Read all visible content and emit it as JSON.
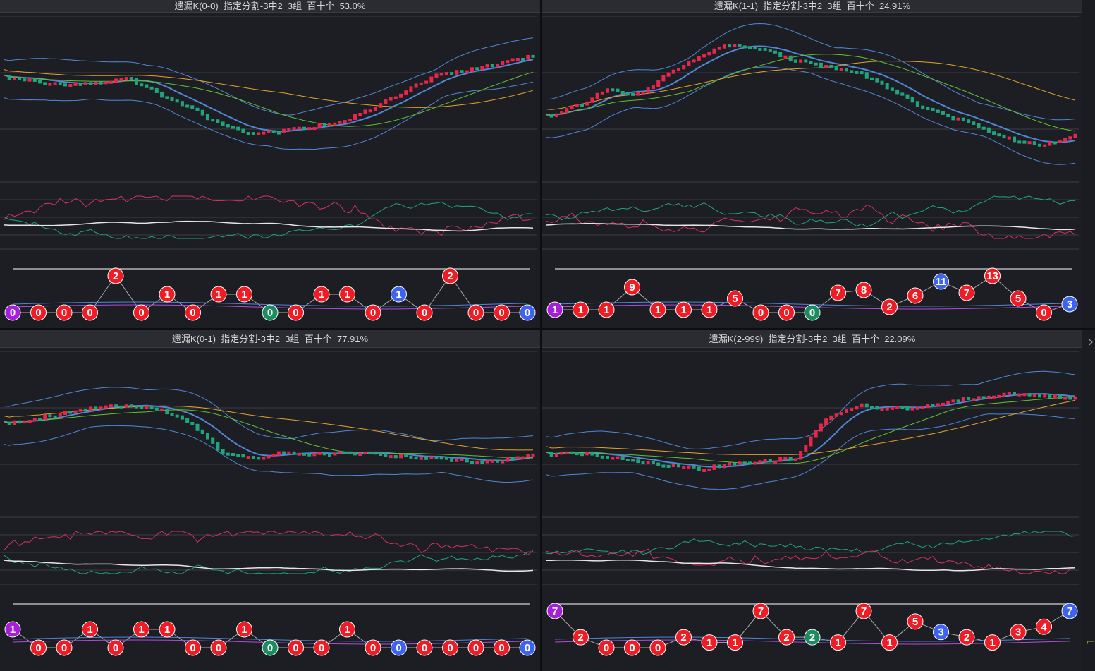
{
  "panels": [
    {
      "title": "遗漏K(0-0)  指定分割-3中2  3组  百十个  53.0%",
      "omissions": [
        {
          "v": 0,
          "c": "purple"
        },
        {
          "v": 0,
          "c": "red"
        },
        {
          "v": 0,
          "c": "red"
        },
        {
          "v": 0,
          "c": "red"
        },
        {
          "v": 2,
          "c": "red"
        },
        {
          "v": 0,
          "c": "red"
        },
        {
          "v": 1,
          "c": "red"
        },
        {
          "v": 0,
          "c": "red"
        },
        {
          "v": 1,
          "c": "red"
        },
        {
          "v": 1,
          "c": "red"
        },
        {
          "v": 0,
          "c": "green"
        },
        {
          "v": 0,
          "c": "red"
        },
        {
          "v": 1,
          "c": "red"
        },
        {
          "v": 1,
          "c": "red"
        },
        {
          "v": 0,
          "c": "red"
        },
        {
          "v": 1,
          "c": "blue"
        },
        {
          "v": 0,
          "c": "red"
        },
        {
          "v": 2,
          "c": "red"
        },
        {
          "v": 0,
          "c": "red"
        },
        {
          "v": 0,
          "c": "red"
        },
        {
          "v": 0,
          "c": "blue"
        }
      ]
    },
    {
      "title": "遗漏K(1-1)  指定分割-3中2  3组  百十个  24.91%",
      "omissions": [
        {
          "v": 1,
          "c": "purple"
        },
        {
          "v": 1,
          "c": "red"
        },
        {
          "v": 1,
          "c": "red"
        },
        {
          "v": 9,
          "c": "red"
        },
        {
          "v": 1,
          "c": "red"
        },
        {
          "v": 1,
          "c": "red"
        },
        {
          "v": 1,
          "c": "red"
        },
        {
          "v": 5,
          "c": "red"
        },
        {
          "v": 0,
          "c": "red"
        },
        {
          "v": 0,
          "c": "red"
        },
        {
          "v": 0,
          "c": "green"
        },
        {
          "v": 7,
          "c": "red"
        },
        {
          "v": 8,
          "c": "red"
        },
        {
          "v": 2,
          "c": "red"
        },
        {
          "v": 6,
          "c": "red"
        },
        {
          "v": 11,
          "c": "blue"
        },
        {
          "v": 7,
          "c": "red"
        },
        {
          "v": 13,
          "c": "red"
        },
        {
          "v": 5,
          "c": "red"
        },
        {
          "v": 0,
          "c": "red"
        },
        {
          "v": 3,
          "c": "blue"
        }
      ]
    },
    {
      "title": "遗漏K(0-1)  指定分割-3中2  3组  百十个  77.91%",
      "omissions": [
        {
          "v": 1,
          "c": "purple"
        },
        {
          "v": 0,
          "c": "red"
        },
        {
          "v": 0,
          "c": "red"
        },
        {
          "v": 1,
          "c": "red"
        },
        {
          "v": 0,
          "c": "red"
        },
        {
          "v": 1,
          "c": "red"
        },
        {
          "v": 1,
          "c": "red"
        },
        {
          "v": 0,
          "c": "red"
        },
        {
          "v": 0,
          "c": "red"
        },
        {
          "v": 1,
          "c": "red"
        },
        {
          "v": 0,
          "c": "green"
        },
        {
          "v": 0,
          "c": "red"
        },
        {
          "v": 0,
          "c": "red"
        },
        {
          "v": 1,
          "c": "red"
        },
        {
          "v": 0,
          "c": "red"
        },
        {
          "v": 0,
          "c": "blue"
        },
        {
          "v": 0,
          "c": "red"
        },
        {
          "v": 0,
          "c": "red"
        },
        {
          "v": 0,
          "c": "red"
        },
        {
          "v": 0,
          "c": "red"
        },
        {
          "v": 0,
          "c": "blue"
        }
      ]
    },
    {
      "title": "遗漏K(2-999)  指定分割-3中2  3组  百十个  22.09%",
      "omissions": [
        {
          "v": 7,
          "c": "purple"
        },
        {
          "v": 2,
          "c": "red"
        },
        {
          "v": 0,
          "c": "red"
        },
        {
          "v": 0,
          "c": "red"
        },
        {
          "v": 0,
          "c": "red"
        },
        {
          "v": 2,
          "c": "red"
        },
        {
          "v": 1,
          "c": "red"
        },
        {
          "v": 1,
          "c": "red"
        },
        {
          "v": 7,
          "c": "red"
        },
        {
          "v": 2,
          "c": "red"
        },
        {
          "v": 2,
          "c": "green"
        },
        {
          "v": 1,
          "c": "red"
        },
        {
          "v": 7,
          "c": "red"
        },
        {
          "v": 1,
          "c": "red"
        },
        {
          "v": 5,
          "c": "red"
        },
        {
          "v": 3,
          "c": "blue"
        },
        {
          "v": 2,
          "c": "red"
        },
        {
          "v": 1,
          "c": "red"
        },
        {
          "v": 3,
          "c": "red"
        },
        {
          "v": 4,
          "c": "red"
        },
        {
          "v": 7,
          "c": "blue"
        }
      ]
    }
  ],
  "colors": {
    "up": "#e8254a",
    "down": "#1fa57c",
    "bollinger": "#4f86d6",
    "ma_green": "#5ec232",
    "ma_orange": "#e3a22b",
    "line_white": "#e6e6e6",
    "line_red": "#d6335a",
    "line_green": "#1fa57c",
    "ball_red": "#ee1c25",
    "ball_green": "#1a8c5d",
    "ball_blue": "#3d63f0",
    "ball_purple": "#a51fd9",
    "grid": "#3c3d44"
  },
  "icons": {
    "scroll_right": "chevron-right-icon",
    "corner": "cursor-corner-icon"
  }
}
